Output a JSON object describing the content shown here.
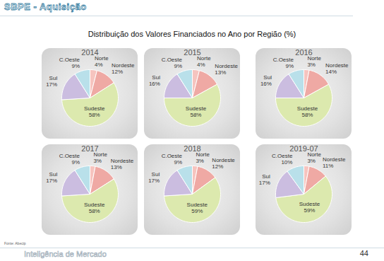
{
  "header": {
    "title": "SBPE - Aquisição",
    "subtitle": "Distribuição dos Valores Financiados no Ano por Região (%)",
    "source": "Fonte: Abecip",
    "footer": "Inteligência de Mercado",
    "page": "44"
  },
  "chart_data": [
    {
      "type": "pie",
      "title": "2014",
      "categories": [
        "Norte",
        "Nordeste",
        "Sudeste",
        "Sul",
        "C.Oeste"
      ],
      "values": [
        4,
        12,
        58,
        17,
        9
      ],
      "value_labels": [
        "4%",
        "12%",
        "58%",
        "17%",
        "9%"
      ],
      "data_labels": true,
      "colors": [
        "#f6c4bf",
        "#efa9a4",
        "#dce9ae",
        "#cbbde0",
        "#b9e0ea"
      ]
    },
    {
      "type": "pie",
      "title": "2015",
      "categories": [
        "Norte",
        "Nordeste",
        "Sudeste",
        "Sul",
        "C.Oeste"
      ],
      "values": [
        4,
        13,
        58,
        16,
        9
      ],
      "value_labels": [
        "4%",
        "13%",
        "58%",
        "16%",
        "9%"
      ],
      "data_labels": true,
      "colors": [
        "#f6c4bf",
        "#efa9a4",
        "#dce9ae",
        "#cbbde0",
        "#b9e0ea"
      ]
    },
    {
      "type": "pie",
      "title": "2016",
      "categories": [
        "Norte",
        "Nordeste",
        "Sudeste",
        "Sul",
        "C.Oeste"
      ],
      "values": [
        3,
        14,
        58,
        16,
        9
      ],
      "value_labels": [
        "3%",
        "14%",
        "58%",
        "16%",
        "9%"
      ],
      "data_labels": true,
      "colors": [
        "#f6c4bf",
        "#efa9a4",
        "#dce9ae",
        "#cbbde0",
        "#b9e0ea"
      ]
    },
    {
      "type": "pie",
      "title": "2017",
      "categories": [
        "Norte",
        "Nordeste",
        "Sudeste",
        "Sul",
        "C.Oeste"
      ],
      "values": [
        3,
        13,
        58,
        17,
        9
      ],
      "value_labels": [
        "3%",
        "13%",
        "58%",
        "17%",
        "9%"
      ],
      "data_labels": true,
      "colors": [
        "#f6c4bf",
        "#efa9a4",
        "#dce9ae",
        "#cbbde0",
        "#b9e0ea"
      ]
    },
    {
      "type": "pie",
      "title": "2018",
      "categories": [
        "Norte",
        "Nordeste",
        "Sudeste",
        "Sul",
        "C.Oeste"
      ],
      "values": [
        3,
        12,
        59,
        17,
        9
      ],
      "value_labels": [
        "3%",
        "12%",
        "59%",
        "17%",
        "9%"
      ],
      "data_labels": true,
      "colors": [
        "#f6c4bf",
        "#efa9a4",
        "#dce9ae",
        "#cbbde0",
        "#b9e0ea"
      ]
    },
    {
      "type": "pie",
      "title": "2019-07",
      "categories": [
        "Norte",
        "Nordeste",
        "Sudeste",
        "Sul",
        "C.Oeste"
      ],
      "values": [
        3,
        11,
        59,
        17,
        10
      ],
      "value_labels": [
        "3%",
        "11%",
        "59%",
        "17%",
        "10%"
      ],
      "data_labels": true,
      "colors": [
        "#f6c4bf",
        "#efa9a4",
        "#dce9ae",
        "#cbbde0",
        "#b9e0ea"
      ]
    }
  ]
}
